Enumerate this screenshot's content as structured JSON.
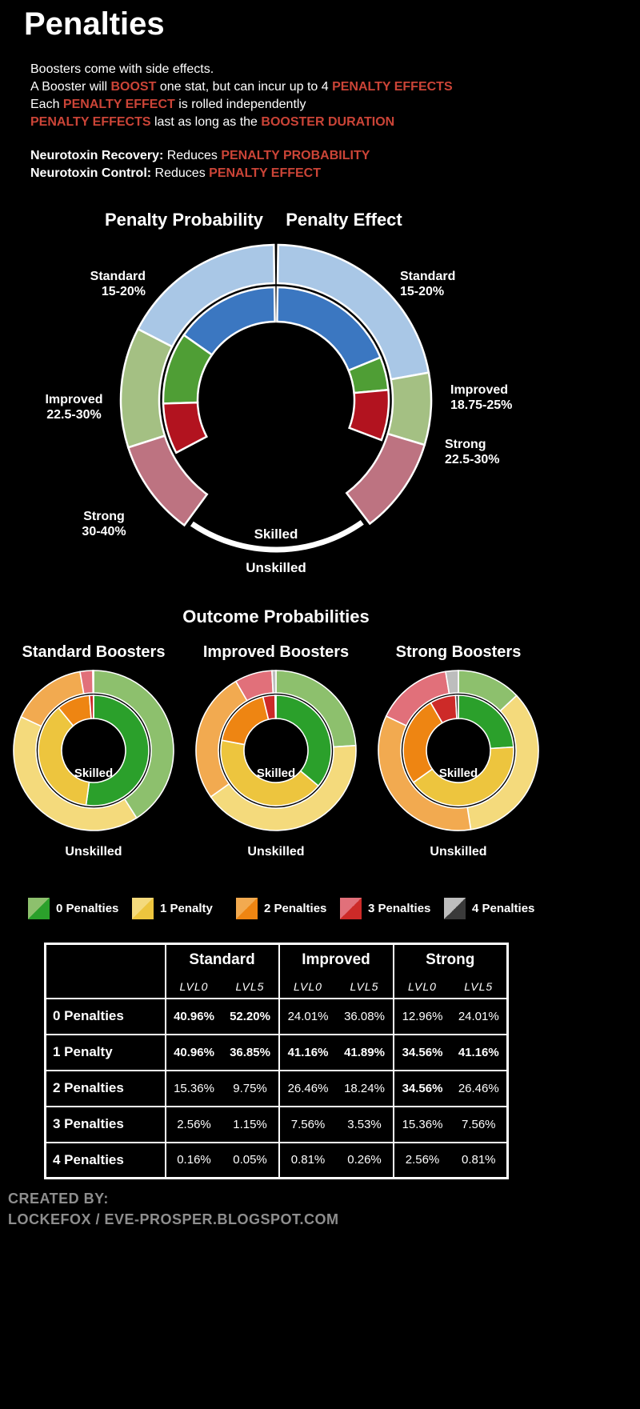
{
  "header": {
    "title": "Penalties"
  },
  "colors": {
    "background": "#000000",
    "text": "#ffffff",
    "accent_red": "#cb4437",
    "footer_gray": "#8e8e8e",
    "penalty_palette": {
      "standard": {
        "unskilled": "#a9c7e6",
        "skilled": "#3b77c1"
      },
      "improved": {
        "unskilled": "#a4c083",
        "skilled": "#4f9e35"
      },
      "strong": {
        "unskilled": "#bd7381",
        "skilled": "#b2131f"
      }
    },
    "outcome_palette": {
      "unskilled": [
        "#8dc06d",
        "#f4da7c",
        "#f2aa50",
        "#e1707a",
        "#bdbdbd"
      ],
      "skilled": [
        "#2ba02b",
        "#edc53e",
        "#ee8512",
        "#cd2a28",
        "#3a3a3a"
      ]
    }
  },
  "intro": {
    "lines": [
      [
        {
          "t": "Boosters come with side effects."
        }
      ],
      [
        {
          "t": "A Booster will "
        },
        {
          "t": "BOOST",
          "red": true
        },
        {
          "t": " one stat, but can incur up to 4 "
        },
        {
          "t": "PENALTY EFFECTS",
          "red": true
        }
      ],
      [
        {
          "t": "Each "
        },
        {
          "t": "PENALTY EFFECT",
          "red": true
        },
        {
          "t": " is rolled independently"
        }
      ],
      [
        {
          "t": "PENALTY EFFECTS",
          "red": true
        },
        {
          "t": " last as long as the "
        },
        {
          "t": "BOOSTER DURATION",
          "red": true
        }
      ],
      [
        {
          "t": "Neurotoxin Recovery:",
          "bold": true
        },
        {
          "t": " Reduces "
        },
        {
          "t": "PENALTY PROBABILITY",
          "red": true
        }
      ],
      [
        {
          "t": "Neurotoxin Control:",
          "bold": true
        },
        {
          "t": " Reduces "
        },
        {
          "t": "PENALTY EFFECT",
          "red": true
        }
      ]
    ]
  },
  "outcome_section": {
    "title": "Outcome Probabilities",
    "legend": [
      "0 Penalties",
      "1 Penalty",
      "2 Penalties",
      "3 Penalties",
      "4 Penalties"
    ]
  },
  "footer": {
    "created_by": "CREATED BY:",
    "credit": "LOCKEFOX / EVE-PROSPER.BLOGSPOT.COM"
  },
  "chart_data": [
    {
      "type": "donut",
      "subtype": "double-half-ring",
      "rings": {
        "outer": "Unskilled",
        "inner": "Skilled"
      },
      "center_labels": {
        "skilled": "Skilled",
        "unskilled": "Unskilled"
      },
      "halves": {
        "left": {
          "title": "Penalty Probability",
          "segments": [
            {
              "label": "Standard",
              "range": "15-20%",
              "unskilled_pct": 20,
              "skilled_pct": 15,
              "color": "standard",
              "outer_span_deg": 62,
              "inner_span_deg": 54
            },
            {
              "label": "Improved",
              "range": "22.5-30%",
              "unskilled_pct": 30,
              "skilled_pct": 22.5,
              "color": "improved",
              "outer_span_deg": 45,
              "inner_span_deg": 37
            },
            {
              "label": "Strong",
              "range": "30-40%",
              "unskilled_pct": 40,
              "skilled_pct": 30,
              "color": "strong",
              "outer_span_deg": 36,
              "inner_span_deg": 26
            }
          ]
        },
        "right": {
          "title": "Penalty Effect",
          "segments": [
            {
              "label": "Standard",
              "range": "15-20%",
              "unskilled_pct": 20,
              "skilled_pct": 15,
              "color": "standard",
              "outer_span_deg": 79,
              "inner_span_deg": 67
            },
            {
              "label": "Improved",
              "range": "18.75-25%",
              "unskilled_pct": 25,
              "skilled_pct": 18.75,
              "color": "improved",
              "outer_span_deg": 27,
              "inner_span_deg": 17
            },
            {
              "label": "Strong",
              "range": "22.5-30%",
              "unskilled_pct": 30,
              "skilled_pct": 22.5,
              "color": "strong",
              "outer_span_deg": 36,
              "inner_span_deg": 26
            }
          ]
        }
      }
    },
    {
      "type": "donut",
      "title": "Standard Boosters",
      "categories": [
        "0 Penalties",
        "1 Penalty",
        "2 Penalties",
        "3 Penalties",
        "4 Penalties"
      ],
      "series": [
        {
          "name": "Unskilled (LVL0)",
          "ring": "outer",
          "values": [
            40.96,
            40.96,
            15.36,
            2.56,
            0.16
          ]
        },
        {
          "name": "Skilled (LVL5)",
          "ring": "inner",
          "values": [
            52.2,
            36.85,
            9.75,
            1.15,
            0.05
          ]
        }
      ],
      "center_label": "Skilled",
      "bottom_label": "Unskilled"
    },
    {
      "type": "donut",
      "title": "Improved Boosters",
      "categories": [
        "0 Penalties",
        "1 Penalty",
        "2 Penalties",
        "3 Penalties",
        "4 Penalties"
      ],
      "series": [
        {
          "name": "Unskilled (LVL0)",
          "ring": "outer",
          "values": [
            24.01,
            41.16,
            26.46,
            7.56,
            0.81
          ]
        },
        {
          "name": "Skilled (LVL5)",
          "ring": "inner",
          "values": [
            36.08,
            41.89,
            18.24,
            3.53,
            0.26
          ]
        }
      ],
      "center_label": "Skilled",
      "bottom_label": "Unskilled"
    },
    {
      "type": "donut",
      "title": "Strong Boosters",
      "categories": [
        "0 Penalties",
        "1 Penalty",
        "2 Penalties",
        "3 Penalties",
        "4 Penalties"
      ],
      "series": [
        {
          "name": "Unskilled (LVL0)",
          "ring": "outer",
          "values": [
            12.96,
            34.56,
            34.56,
            15.36,
            2.56
          ]
        },
        {
          "name": "Skilled (LVL5)",
          "ring": "inner",
          "values": [
            24.01,
            41.16,
            26.46,
            7.56,
            0.81
          ]
        }
      ],
      "center_label": "Skilled",
      "bottom_label": "Unskilled"
    },
    {
      "type": "table",
      "column_groups": [
        "Standard",
        "Improved",
        "Strong"
      ],
      "sub_columns": [
        "LVL0",
        "LVL5"
      ],
      "rows": [
        {
          "label": "0 Penalties",
          "values": [
            "40.96%",
            "52.20%",
            "24.01%",
            "36.08%",
            "12.96%",
            "24.01%"
          ],
          "bold": [
            true,
            true,
            false,
            false,
            false,
            false
          ]
        },
        {
          "label": "1 Penalty",
          "values": [
            "40.96%",
            "36.85%",
            "41.16%",
            "41.89%",
            "34.56%",
            "41.16%"
          ],
          "bold": [
            true,
            true,
            true,
            true,
            true,
            true
          ]
        },
        {
          "label": "2 Penalties",
          "values": [
            "15.36%",
            "9.75%",
            "26.46%",
            "18.24%",
            "34.56%",
            "26.46%"
          ],
          "bold": [
            false,
            false,
            false,
            false,
            true,
            false
          ]
        },
        {
          "label": "3 Penalties",
          "values": [
            "2.56%",
            "1.15%",
            "7.56%",
            "3.53%",
            "15.36%",
            "7.56%"
          ],
          "bold": [
            false,
            false,
            false,
            false,
            false,
            false
          ]
        },
        {
          "label": "4 Penalties",
          "values": [
            "0.16%",
            "0.05%",
            "0.81%",
            "0.26%",
            "2.56%",
            "0.81%"
          ],
          "bold": [
            false,
            false,
            false,
            false,
            false,
            false
          ]
        }
      ]
    }
  ]
}
